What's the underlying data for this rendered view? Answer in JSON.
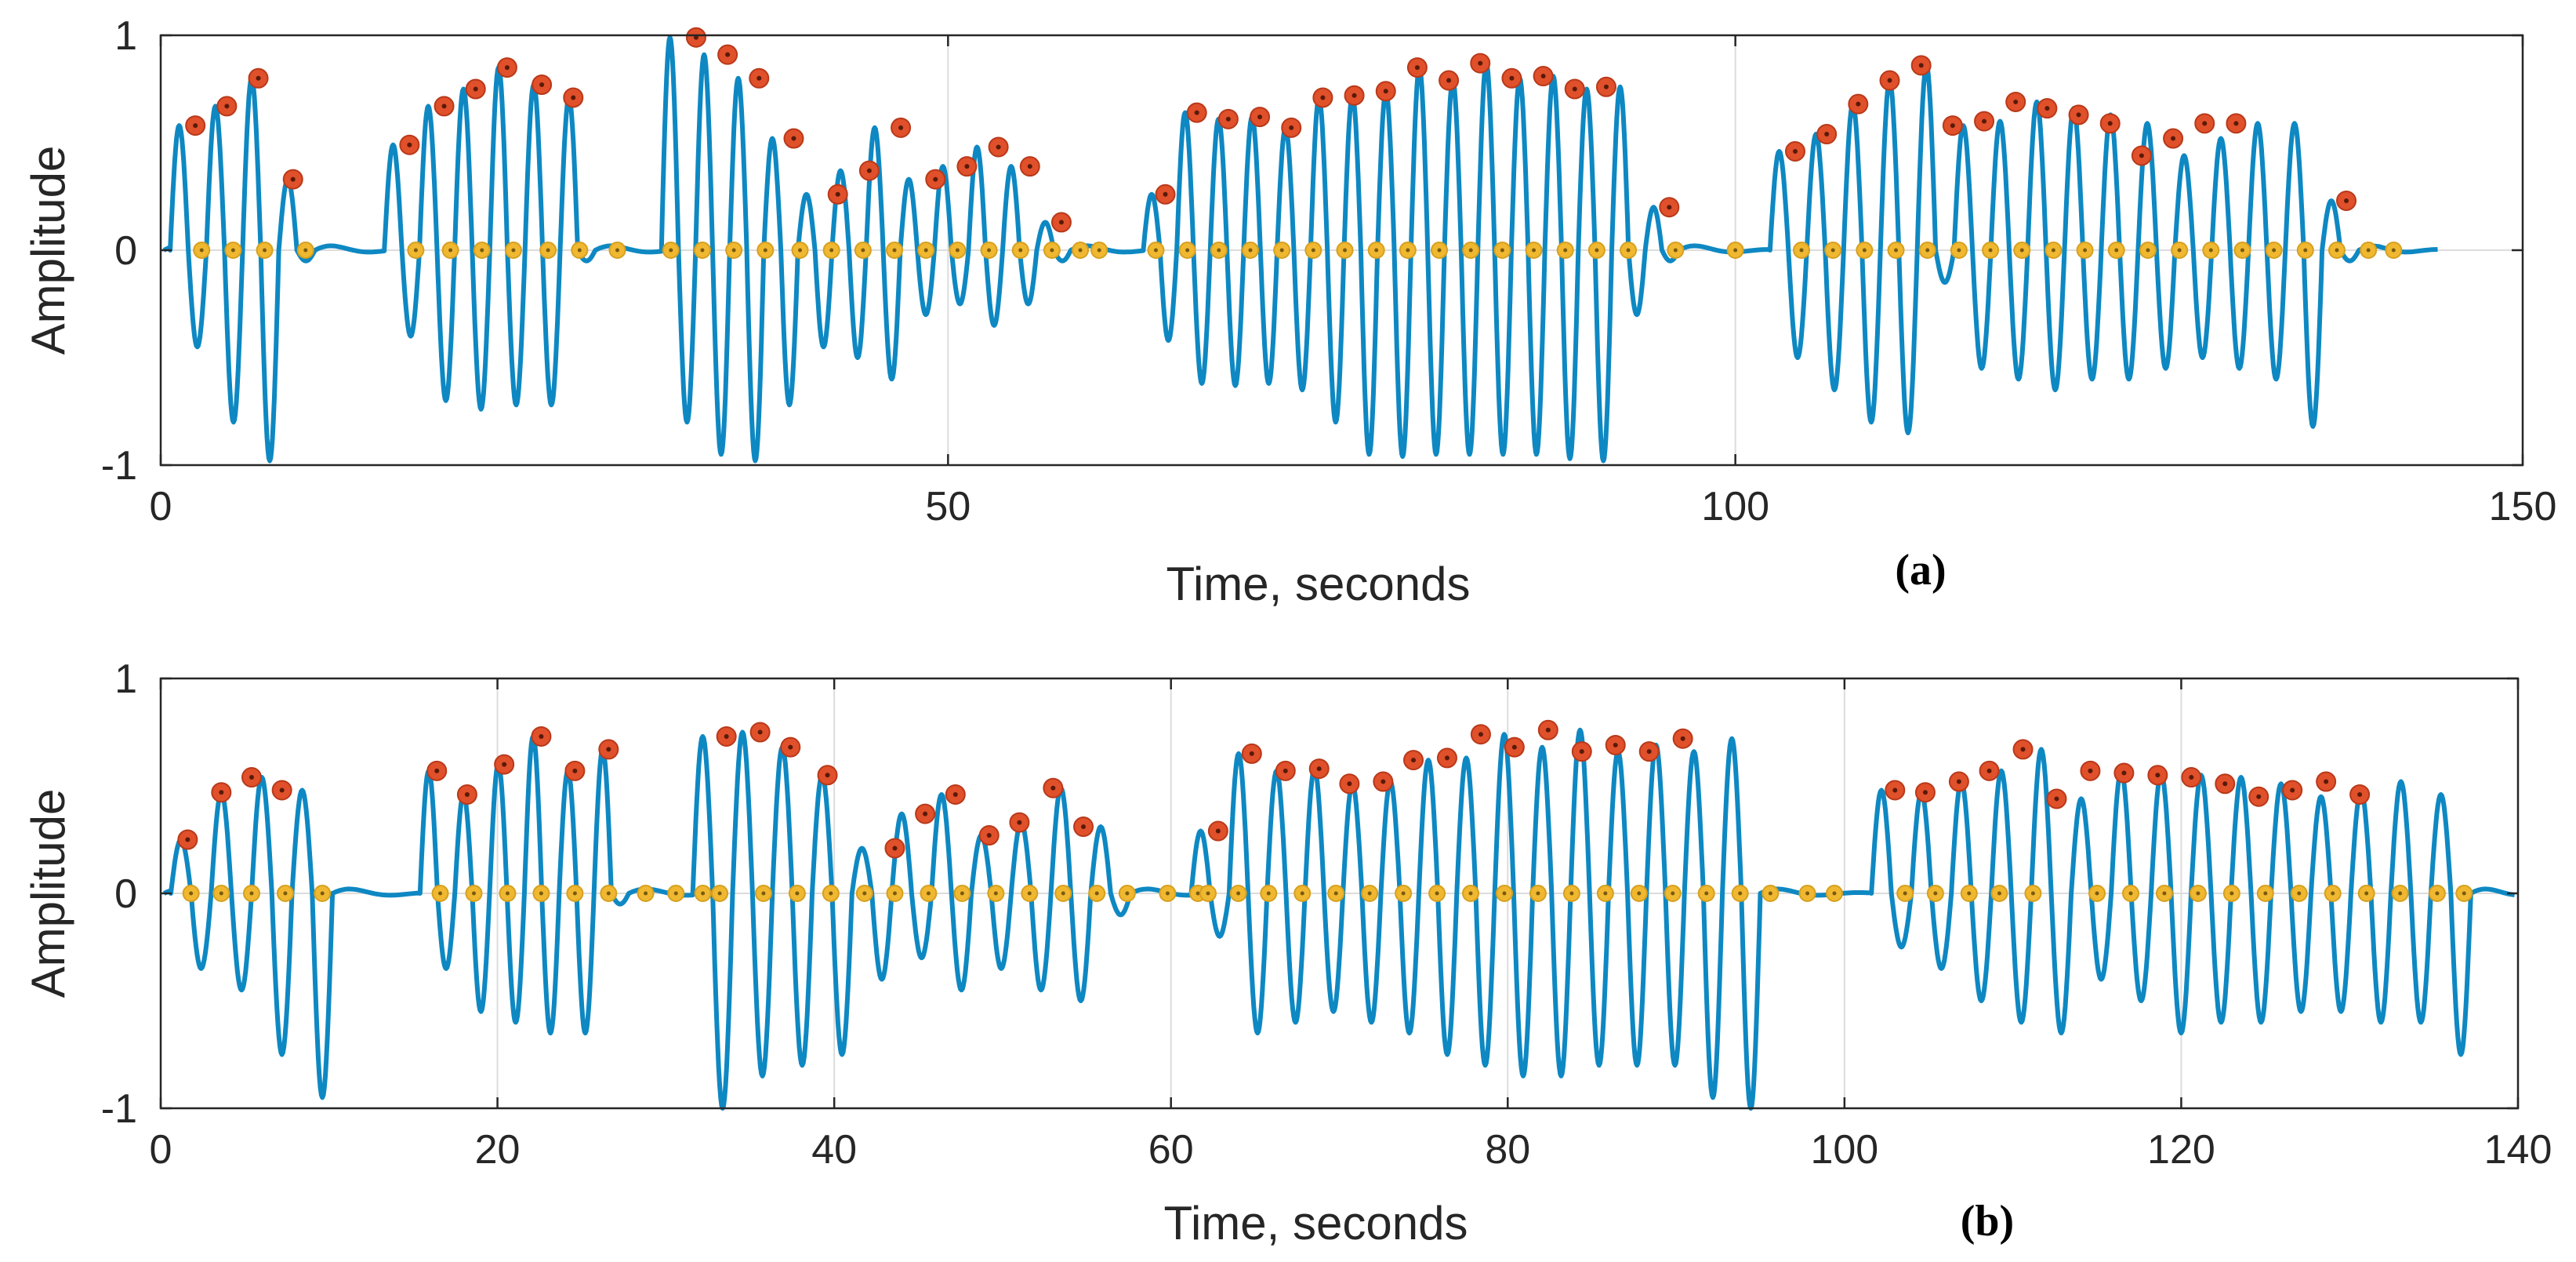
{
  "colors": {
    "signal": "#0e88c2",
    "peak_marker": "#e0502a",
    "peak_marker_edge": "#b8391a",
    "zero_marker": "#f0b830",
    "zero_marker_edge": "#d6a020",
    "axes": "#262626",
    "grid": "#dcdcdc"
  },
  "chart_data": [
    {
      "type": "line",
      "panel_label": "(a)",
      "xlabel": "Time, seconds",
      "ylabel": "Amplitude",
      "xlim": [
        0,
        150
      ],
      "ylim": [
        -1,
        1
      ],
      "xticks": [
        0,
        50,
        100,
        150
      ],
      "xtick_labels": [
        "0",
        "50",
        "100",
        "150"
      ],
      "yticks": [
        -1,
        0,
        1
      ],
      "ytick_labels": [
        "-1",
        "0",
        "1"
      ],
      "grid": true,
      "series": [
        {
          "name": "signal",
          "bursts": [
            {
              "start": 0.6,
              "end": 9.8,
              "amplitudes": [
                0.58,
                0.67,
                0.8,
                0.33
              ],
              "troughs": [
                -0.45,
                -0.8,
                -0.98,
                -0.05
              ]
            },
            {
              "start": 14.2,
              "end": 27.6,
              "amplitudes": [
                0.49,
                0.67,
                0.75,
                0.85,
                0.77,
                0.71
              ],
              "troughs": [
                -0.4,
                -0.7,
                -0.74,
                -0.72,
                -0.72,
                -0.05
              ]
            },
            {
              "start": 31.8,
              "end": 57.8,
              "amplitudes": [
                0.99,
                0.91,
                0.8,
                0.52,
                0.26,
                0.37,
                0.57,
                0.33,
                0.39,
                0.48,
                0.39,
                0.13
              ],
              "troughs": [
                -0.8,
                -0.95,
                -0.98,
                -0.72,
                -0.45,
                -0.5,
                -0.6,
                -0.3,
                -0.25,
                -0.35,
                -0.25,
                -0.05
              ]
            },
            {
              "start": 62.4,
              "end": 96.4,
              "amplitudes": [
                0.26,
                0.64,
                0.61,
                0.62,
                0.57,
                0.71,
                0.72,
                0.74,
                0.85,
                0.79,
                0.87,
                0.8,
                0.81,
                0.75,
                0.76,
                0.2
              ],
              "troughs": [
                -0.42,
                -0.62,
                -0.63,
                -0.62,
                -0.65,
                -0.8,
                -0.95,
                -0.96,
                -0.95,
                -0.95,
                -0.95,
                -0.95,
                -0.97,
                -0.98,
                -0.3,
                -0.05
              ]
            },
            {
              "start": 102.2,
              "end": 139.6,
              "amplitudes": [
                0.46,
                0.54,
                0.68,
                0.79,
                0.86,
                0.58,
                0.6,
                0.69,
                0.66,
                0.63,
                0.59,
                0.44,
                0.52,
                0.59,
                0.59,
                0.23
              ],
              "troughs": [
                -0.5,
                -0.65,
                -0.8,
                -0.85,
                -0.15,
                -0.55,
                -0.6,
                -0.65,
                -0.6,
                -0.6,
                -0.55,
                -0.5,
                -0.55,
                -0.6,
                -0.82,
                -0.05
              ]
            }
          ]
        },
        {
          "name": "peaks",
          "x": [
            2.2,
            4.2,
            6.2,
            8.4,
            15.8,
            18.0,
            20.0,
            22.0,
            24.2,
            26.2,
            34.0,
            36.0,
            38.0,
            40.2,
            43.0,
            45.0,
            47.0,
            49.2,
            51.2,
            53.2,
            55.2,
            57.2,
            63.8,
            65.8,
            67.8,
            69.8,
            71.8,
            73.8,
            75.8,
            77.8,
            79.8,
            81.8,
            83.8,
            85.8,
            87.8,
            89.8,
            91.8,
            95.8,
            103.8,
            105.8,
            107.8,
            109.8,
            111.8,
            113.8,
            115.8,
            117.8,
            119.8,
            121.8,
            123.8,
            125.8,
            127.8,
            129.8,
            131.8,
            138.8
          ],
          "y": [
            0.58,
            0.67,
            0.8,
            0.33,
            0.49,
            0.67,
            0.75,
            0.85,
            0.77,
            0.71,
            0.99,
            0.91,
            0.8,
            0.52,
            0.26,
            0.37,
            0.57,
            0.33,
            0.39,
            0.48,
            0.39,
            0.13,
            0.26,
            0.64,
            0.61,
            0.62,
            0.57,
            0.71,
            0.72,
            0.74,
            0.85,
            0.79,
            0.87,
            0.8,
            0.81,
            0.75,
            0.76,
            0.2,
            0.46,
            0.54,
            0.68,
            0.79,
            0.86,
            0.58,
            0.6,
            0.69,
            0.66,
            0.63,
            0.59,
            0.44,
            0.52,
            0.59,
            0.59,
            0.23
          ]
        },
        {
          "name": "zero_crossings",
          "x": [
            2.6,
            4.6,
            6.6,
            9.2,
            16.2,
            18.4,
            20.4,
            22.4,
            24.6,
            26.6,
            29.0,
            32.4,
            34.4,
            36.4,
            38.4,
            40.6,
            42.6,
            44.6,
            46.6,
            48.6,
            50.6,
            52.6,
            54.6,
            56.6,
            58.4,
            59.6,
            63.2,
            65.2,
            67.2,
            69.2,
            71.2,
            73.2,
            75.2,
            77.2,
            79.2,
            81.2,
            83.2,
            85.2,
            87.2,
            89.2,
            91.2,
            93.2,
            96.2,
            100.0,
            104.2,
            106.2,
            108.2,
            110.2,
            112.2,
            114.2,
            116.2,
            118.2,
            120.2,
            122.2,
            124.2,
            126.2,
            128.2,
            130.2,
            132.2,
            134.2,
            136.2,
            138.2,
            140.2,
            141.8
          ],
          "y": 0
        }
      ]
    },
    {
      "type": "line",
      "panel_label": "(b)",
      "xlabel": "Time, seconds",
      "ylabel": "Amplitude",
      "xlim": [
        0,
        140
      ],
      "ylim": [
        -1,
        1
      ],
      "xticks": [
        0,
        20,
        40,
        60,
        80,
        100,
        120,
        140
      ],
      "xtick_labels": [
        "0",
        "20",
        "40",
        "60",
        "80",
        "100",
        "120",
        "140"
      ],
      "yticks": [
        -1,
        0,
        1
      ],
      "ytick_labels": [
        "-1",
        "0",
        "1"
      ],
      "grid": true,
      "series": [
        {
          "name": "signal",
          "bursts": [
            {
              "start": 0.6,
              "end": 10.2,
              "amplitudes": [
                0.25,
                0.47,
                0.54,
                0.48
              ],
              "troughs": [
                -0.35,
                -0.45,
                -0.75,
                -0.95
              ]
            },
            {
              "start": 15.4,
              "end": 27.8,
              "amplitudes": [
                0.57,
                0.46,
                0.6,
                0.73,
                0.57,
                0.67
              ],
              "troughs": [
                -0.35,
                -0.55,
                -0.6,
                -0.65,
                -0.65,
                -0.05
              ]
            },
            {
              "start": 31.6,
              "end": 57.6,
              "amplitudes": [
                0.73,
                0.75,
                0.68,
                0.55,
                0.21,
                0.37,
                0.46,
                0.27,
                0.33,
                0.49,
                0.31
              ],
              "troughs": [
                -1.0,
                -0.85,
                -0.8,
                -0.75,
                -0.4,
                -0.3,
                -0.45,
                -0.35,
                -0.45,
                -0.5,
                -0.1
              ]
            },
            {
              "start": 61.2,
              "end": 95.0,
              "amplitudes": [
                0.29,
                0.65,
                0.57,
                0.58,
                0.51,
                0.52,
                0.62,
                0.63,
                0.74,
                0.68,
                0.76,
                0.66,
                0.69,
                0.66,
                0.72
              ],
              "troughs": [
                -0.2,
                -0.65,
                -0.6,
                -0.55,
                -0.6,
                -0.65,
                -0.75,
                -0.8,
                -0.85,
                -0.85,
                -0.8,
                -0.8,
                -0.8,
                -0.95,
                -1.0
              ]
            },
            {
              "start": 101.6,
              "end": 137.2,
              "amplitudes": [
                0.48,
                0.47,
                0.52,
                0.57,
                0.67,
                0.44,
                0.57,
                0.56,
                0.55,
                0.54,
                0.51,
                0.45,
                0.48,
                0.52,
                0.46
              ],
              "troughs": [
                -0.25,
                -0.35,
                -0.5,
                -0.6,
                -0.65,
                -0.4,
                -0.5,
                -0.65,
                -0.6,
                -0.6,
                -0.55,
                -0.55,
                -0.6,
                -0.6,
                -0.75
              ]
            }
          ]
        },
        {
          "name": "peaks",
          "x": [
            1.6,
            3.6,
            5.4,
            7.2,
            16.4,
            18.2,
            20.4,
            22.6,
            24.6,
            26.6,
            33.6,
            35.6,
            37.4,
            39.6,
            43.6,
            45.4,
            47.2,
            49.2,
            51.0,
            53.0,
            54.8,
            62.8,
            64.8,
            66.8,
            68.8,
            70.6,
            72.6,
            74.4,
            76.4,
            78.4,
            80.4,
            82.4,
            84.4,
            86.4,
            88.4,
            90.4,
            103.0,
            104.8,
            106.8,
            108.6,
            110.6,
            112.6,
            114.6,
            116.6,
            118.6,
            120.6,
            122.6,
            124.6,
            126.6,
            128.6,
            130.6
          ],
          "y": [
            0.25,
            0.47,
            0.54,
            0.48,
            0.57,
            0.46,
            0.6,
            0.73,
            0.57,
            0.67,
            0.73,
            0.75,
            0.68,
            0.55,
            0.21,
            0.37,
            0.46,
            0.27,
            0.33,
            0.49,
            0.31,
            0.29,
            0.65,
            0.57,
            0.58,
            0.51,
            0.52,
            0.62,
            0.63,
            0.74,
            0.68,
            0.76,
            0.66,
            0.69,
            0.66,
            0.72,
            0.48,
            0.47,
            0.52,
            0.57,
            0.67,
            0.44,
            0.57,
            0.56,
            0.55,
            0.54,
            0.51,
            0.45,
            0.48,
            0.52,
            0.46
          ]
        },
        {
          "name": "zero_crossings",
          "x": [
            1.8,
            3.6,
            5.4,
            7.4,
            9.6,
            16.6,
            18.6,
            20.6,
            22.6,
            24.6,
            26.6,
            28.8,
            30.6,
            32.2,
            33.2,
            35.8,
            37.8,
            39.8,
            41.8,
            43.6,
            45.6,
            47.6,
            49.6,
            51.6,
            53.6,
            55.6,
            57.4,
            59.8,
            61.6,
            62.2,
            64.0,
            65.8,
            67.8,
            69.8,
            71.8,
            73.8,
            75.8,
            77.8,
            79.8,
            81.8,
            83.8,
            85.8,
            87.8,
            89.8,
            91.8,
            93.8,
            95.6,
            97.8,
            99.4,
            103.6,
            105.4,
            107.4,
            109.2,
            111.2,
            115.0,
            117.0,
            119.0,
            121.0,
            123.0,
            125.0,
            127.0,
            129.0,
            131.0,
            133.0,
            135.2,
            136.8
          ],
          "y": 0
        }
      ]
    }
  ]
}
